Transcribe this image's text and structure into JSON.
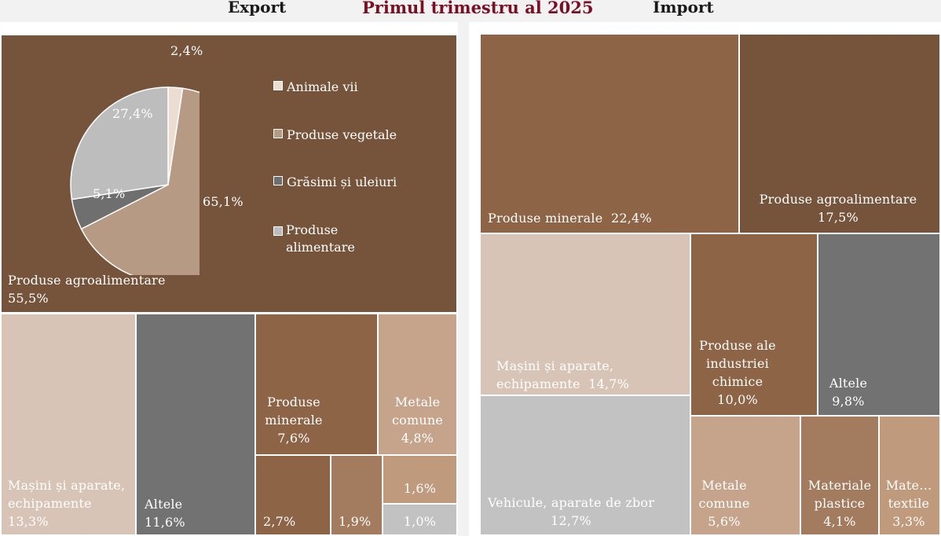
{
  "header": {
    "export_label": "Export",
    "title": "Primul trimestru al 2025",
    "import_label": "Import"
  },
  "colors": {
    "dark_brown": "#76543b",
    "mid_brown": "#8e6447",
    "light_tan": "#d8c4b6",
    "tan": "#c6a48c",
    "gray": "#727272",
    "light_gray": "#c2c2c2",
    "medium_brown": "#a37c5f"
  },
  "pie": {
    "labels": {
      "animale": "2,4%",
      "vegetale": "65,1%",
      "grasimi": "5,1%",
      "alimentare": "27,4%"
    }
  },
  "legend": {
    "items": [
      "Animale vii",
      "Produse vegetale",
      "Grăsimi și uleiuri",
      "Produse\nalimentare"
    ]
  },
  "export_tiles": {
    "agro": "Produse agroalimentare\n55,5%",
    "masini": "Mașini și aparate,\nechipamente\n13,3%",
    "altele": "Altele\n11,6%",
    "minerale": "Produse\nminerale\n7,6%",
    "metale": "Metale\ncomune\n4,8%",
    "t27": "2,7%",
    "t19": "1,9%",
    "t16": "1,6%",
    "t10": "1,0%"
  },
  "import_tiles": {
    "minerale": "Produse minerale  22,4%",
    "agro": "Produse agroalimentare\n17,5%",
    "masini": "Mașini și aparate,\nechipamente  14,7%",
    "chimice": "Produse ale\nindustriei\nchimice\n10,0%",
    "altele": "Altele\n9,8%",
    "vehicule": "Vehicule, aparate de zbor\n12,7%",
    "metale": "Metale\ncomune\n5,6%",
    "plastice": "Materiale\nplastice\n4,1%",
    "textile": "Mate…\ntextile\n3,3%"
  },
  "chart_data": [
    {
      "type": "pie",
      "title": "",
      "categories": [
        "Animale vii",
        "Produse vegetale",
        "Grăsimi și uleiuri",
        "Produse alimentare"
      ],
      "values": [
        2.4,
        65.1,
        5.1,
        27.4
      ],
      "legend": "right"
    },
    {
      "type": "treemap",
      "title": "Export",
      "categories": [
        "Produse agroalimentare",
        "Mașini și aparate, echipamente",
        "Altele",
        "Produse minerale",
        "Metale comune",
        "2,7%",
        "1,9%",
        "1,6%",
        "1,0%"
      ],
      "values": [
        55.5,
        13.3,
        11.6,
        7.6,
        4.8,
        2.7,
        1.9,
        1.6,
        1.0
      ]
    },
    {
      "type": "treemap",
      "title": "Import",
      "categories": [
        "Produse minerale",
        "Produse agroalimentare",
        "Mașini și aparate, echipamente",
        "Vehicule, aparate de zbor",
        "Produse ale industriei chimice",
        "Altele",
        "Metale comune",
        "Materiale plastice",
        "Materiale textile"
      ],
      "values": [
        22.4,
        17.5,
        14.7,
        12.7,
        10.0,
        9.8,
        5.6,
        4.1,
        3.3
      ]
    }
  ]
}
